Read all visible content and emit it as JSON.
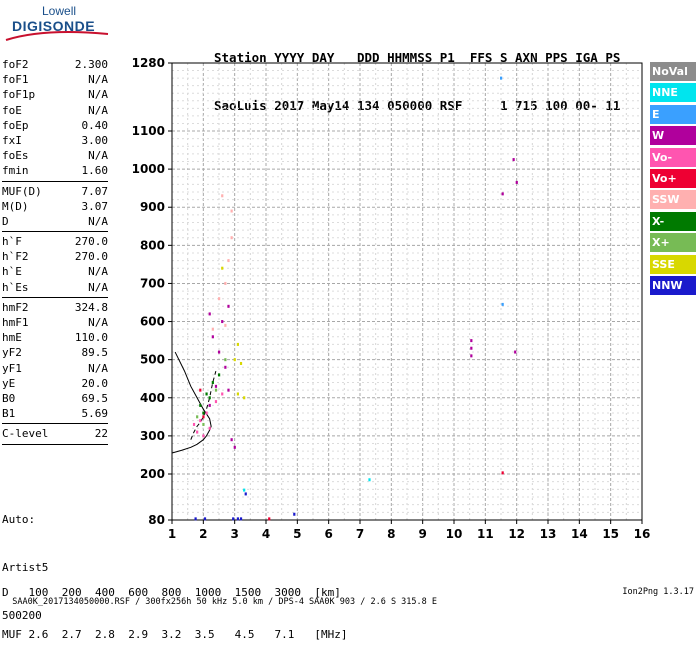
{
  "logo": {
    "line1": "Lowell",
    "line2": "DIGISONDE"
  },
  "header": {
    "labels": "Station YYYY DAY   DDD HHMMSS P1  FFS S AXN PPS IGA PS",
    "values": "SaoLuis 2017 May14 134 050000 RSF     1 715 100 00- 11"
  },
  "params": [
    {
      "label": "foF2",
      "value": "2.300"
    },
    {
      "label": "foF1",
      "value": "N/A"
    },
    {
      "label": "foF1p",
      "value": "N/A"
    },
    {
      "label": "foE",
      "value": "N/A"
    },
    {
      "label": "foEp",
      "value": "0.40"
    },
    {
      "label": "fxI",
      "value": "3.00"
    },
    {
      "label": "foEs",
      "value": "N/A"
    },
    {
      "label": "fmin",
      "value": "1.60",
      "sep": true
    },
    {
      "label": "MUF(D)",
      "value": "7.07"
    },
    {
      "label": "M(D)",
      "value": "3.07"
    },
    {
      "label": "D",
      "value": "N/A",
      "sep": true
    },
    {
      "label": "h`F",
      "value": "270.0"
    },
    {
      "label": "h`F2",
      "value": "270.0"
    },
    {
      "label": "h`E",
      "value": "N/A"
    },
    {
      "label": "h`Es",
      "value": "N/A",
      "sep": true
    },
    {
      "label": "hmF2",
      "value": "324.8"
    },
    {
      "label": "hmF1",
      "value": "N/A"
    },
    {
      "label": "hmE",
      "value": "110.0"
    },
    {
      "label": "yF2",
      "value": "89.5"
    },
    {
      "label": "yF1",
      "value": "N/A"
    },
    {
      "label": "yE",
      "value": "20.0"
    },
    {
      "label": "B0",
      "value": "69.5"
    },
    {
      "label": "B1",
      "value": "5.69",
      "sep": true
    },
    {
      "label": "C-level",
      "value": "22",
      "sep": true
    }
  ],
  "auto": [
    "Auto:",
    "Artist5",
    "500200"
  ],
  "legend": [
    {
      "label": "NoVal",
      "color": "#8c8c8c"
    },
    {
      "label": "NNE",
      "color": "#00e5ee"
    },
    {
      "label": "E",
      "color": "#3aa0ff"
    },
    {
      "label": "W",
      "color": "#b0009c"
    },
    {
      "label": "Vo-",
      "color": "#ff55b0"
    },
    {
      "label": "Vo+",
      "color": "#ee0033"
    },
    {
      "label": "SSW",
      "color": "#ffb0b0"
    },
    {
      "label": "X-",
      "color": "#007a00"
    },
    {
      "label": "X+",
      "color": "#77bb55"
    },
    {
      "label": "SSE",
      "color": "#d8d800"
    },
    {
      "label": "NNW",
      "color": "#1a1acc"
    }
  ],
  "muf_table": {
    "d_label": "D",
    "d_values": [
      "100",
      "200",
      "400",
      "600",
      "800",
      "1000",
      "1500",
      "3000"
    ],
    "d_unit": "[km]",
    "muf_label": "MUF",
    "muf_values": [
      "2.6",
      "2.7",
      "2.8",
      "2.9",
      "3.2",
      "3.5",
      "4.5",
      "7.1"
    ],
    "muf_unit": "[MHz]"
  },
  "footer": {
    "left": "SAA0K_2017134050000.RSF / 300fx256h 50 kHz 5.0 km / DPS-4 SAA0K 903 / 2.6 S 315.8 E",
    "right": "Ion2Png 1.3.17"
  },
  "chart_data": {
    "type": "scatter",
    "xlim": [
      1,
      16
    ],
    "x_ticks": [
      1,
      2,
      3,
      4,
      5,
      6,
      7,
      8,
      9,
      10,
      11,
      12,
      13,
      14,
      15,
      16
    ],
    "y_ticks": [
      80,
      200,
      300,
      400,
      500,
      600,
      700,
      800,
      900,
      1000,
      1100,
      1280
    ],
    "y_scale": "piecewise: 80-200 compressed, 200-1100 linear, 1100-1280 compressed",
    "grid": true,
    "series": [
      {
        "name": "W",
        "color": "#b0009c",
        "points": [
          [
            11.9,
            1025
          ],
          [
            11.55,
            935
          ],
          [
            12.0,
            965
          ],
          [
            10.55,
            550
          ],
          [
            10.55,
            530
          ],
          [
            10.55,
            510
          ],
          [
            11.95,
            520
          ],
          [
            2.2,
            620
          ],
          [
            2.3,
            560
          ],
          [
            2.5,
            520
          ],
          [
            2.6,
            600
          ],
          [
            2.8,
            640
          ],
          [
            2.7,
            480
          ],
          [
            2.4,
            430
          ],
          [
            2.8,
            420
          ],
          [
            2.2,
            380
          ],
          [
            2.9,
            290
          ],
          [
            3.0,
            270
          ]
        ]
      },
      {
        "name": "NNW",
        "color": "#1a1acc",
        "points": [
          [
            2.95,
            83
          ],
          [
            3.1,
            83
          ],
          [
            3.2,
            83
          ],
          [
            3.35,
            148
          ],
          [
            4.9,
            95
          ],
          [
            1.75,
            83
          ],
          [
            2.05,
            83
          ]
        ]
      },
      {
        "name": "E",
        "color": "#3aa0ff",
        "points": [
          [
            11.5,
            1240
          ],
          [
            11.55,
            645
          ]
        ]
      },
      {
        "name": "NNE",
        "color": "#00e5ee",
        "points": [
          [
            7.3,
            185
          ],
          [
            3.3,
            158
          ]
        ]
      },
      {
        "name": "Vo+",
        "color": "#ee0033",
        "points": [
          [
            11.55,
            203
          ],
          [
            4.1,
            83
          ],
          [
            1.9,
            420
          ],
          [
            2.0,
            350
          ]
        ]
      },
      {
        "name": "SSW",
        "color": "#ffb0b0",
        "points": [
          [
            2.6,
            930
          ],
          [
            2.9,
            890
          ],
          [
            2.8,
            760
          ],
          [
            2.7,
            700
          ],
          [
            2.5,
            660
          ],
          [
            2.9,
            820
          ],
          [
            2.3,
            580
          ],
          [
            2.7,
            590
          ]
        ]
      },
      {
        "name": "Vo-",
        "color": "#ff55b0",
        "points": [
          [
            1.7,
            330
          ],
          [
            1.9,
            340
          ],
          [
            2.1,
            360
          ],
          [
            2.2,
            320
          ],
          [
            1.8,
            310
          ],
          [
            2.4,
            390
          ],
          [
            2.6,
            410
          ],
          [
            2.0,
            300
          ]
        ]
      },
      {
        "name": "X-",
        "color": "#007a00",
        "points": [
          [
            1.9,
            380
          ],
          [
            2.1,
            410
          ],
          [
            2.3,
            440
          ],
          [
            2.0,
            360
          ],
          [
            2.5,
            460
          ],
          [
            2.2,
            400
          ]
        ]
      },
      {
        "name": "X+",
        "color": "#77bb55",
        "points": [
          [
            1.8,
            350
          ],
          [
            2.0,
            330
          ],
          [
            2.4,
            420
          ],
          [
            2.7,
            500
          ]
        ]
      },
      {
        "name": "SSE",
        "color": "#d8d800",
        "points": [
          [
            3.1,
            540
          ],
          [
            3.2,
            490
          ],
          [
            3.0,
            500
          ],
          [
            2.6,
            740
          ],
          [
            3.1,
            410
          ],
          [
            3.3,
            400
          ]
        ]
      }
    ],
    "profile": {
      "name": "profile",
      "points": [
        [
          1.0,
          255
        ],
        [
          1.3,
          262
        ],
        [
          1.6,
          270
        ],
        [
          1.8,
          278
        ],
        [
          2.0,
          290
        ],
        [
          2.1,
          300
        ],
        [
          2.2,
          315
        ],
        [
          2.25,
          325
        ],
        [
          2.2,
          345
        ],
        [
          2.0,
          370
        ],
        [
          1.8,
          400
        ],
        [
          1.6,
          430
        ],
        [
          1.4,
          470
        ],
        [
          1.1,
          520
        ]
      ]
    },
    "trace": {
      "name": "virtual-height trace",
      "points": [
        [
          1.6,
          290
        ],
        [
          1.7,
          310
        ],
        [
          1.8,
          325
        ],
        [
          1.9,
          335
        ],
        [
          2.0,
          350
        ],
        [
          2.1,
          370
        ],
        [
          2.2,
          400
        ],
        [
          2.3,
          440
        ],
        [
          2.4,
          470
        ]
      ]
    }
  }
}
